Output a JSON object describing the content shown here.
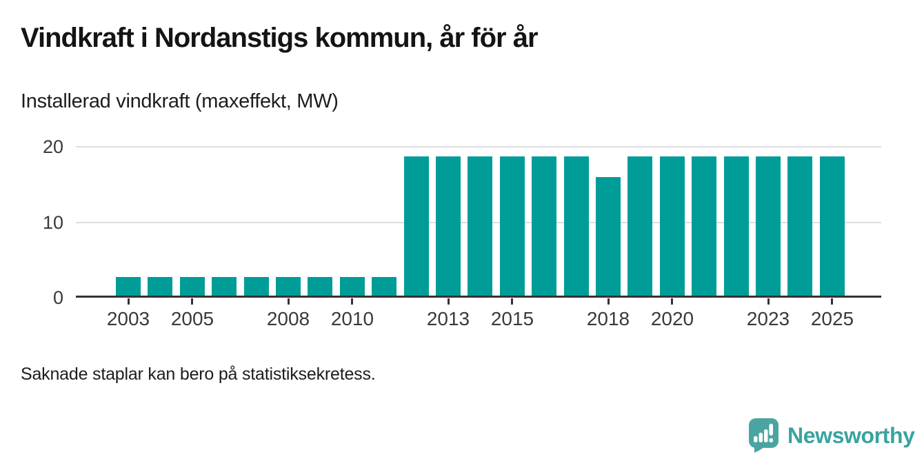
{
  "header": {
    "title": "Vindkraft i Nordanstigs kommun, år för år",
    "subtitle": "Installerad vindkraft (maxeffekt, MW)"
  },
  "chart_data": {
    "type": "bar",
    "title": "Vindkraft i Nordanstigs kommun, år för år",
    "subtitle": "Installerad vindkraft (maxeffekt, MW)",
    "ylabel": "Installerad vindkraft (maxeffekt, MW)",
    "unit": "MW",
    "categories": [
      2003,
      2004,
      2005,
      2006,
      2007,
      2008,
      2009,
      2010,
      2011,
      2012,
      2013,
      2014,
      2015,
      2016,
      2017,
      2018,
      2019,
      2020,
      2021,
      2022,
      2023,
      2024,
      2025
    ],
    "values": [
      2.7,
      2.7,
      2.7,
      2.7,
      2.7,
      2.7,
      2.7,
      2.7,
      2.7,
      18.7,
      18.7,
      18.7,
      18.7,
      18.7,
      18.7,
      16,
      18.7,
      18.7,
      18.7,
      18.7,
      18.7,
      18.7,
      18.7
    ],
    "ylim": [
      0,
      20
    ],
    "yticks": [
      0,
      10,
      20
    ],
    "xticks_labeled": [
      2003,
      2005,
      2008,
      2010,
      2013,
      2015,
      2018,
      2020,
      2023,
      2025
    ],
    "grid": "horizontal",
    "legend": "none",
    "bar_color": "#009d98"
  },
  "footer": {
    "note": "Saknade staplar kan bero på statistiksekretess."
  },
  "logo": {
    "text": "Newsworthy",
    "icon": "speech-bubble-bar-chart-icon",
    "icon_color": "#4aa5a2",
    "text_color": "#3aa3a0"
  }
}
